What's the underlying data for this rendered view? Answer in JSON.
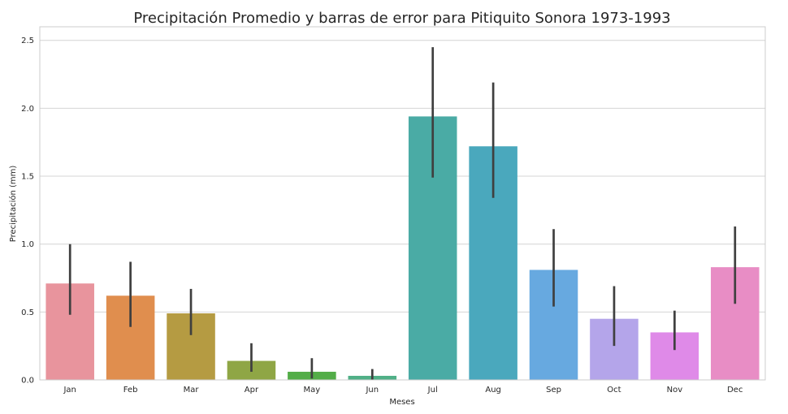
{
  "chart_data": {
    "type": "bar",
    "title": "Precipitación Promedio y barras de error para Pitiquito Sonora 1973-1993",
    "xlabel": "Meses",
    "ylabel": "Precipitación (mm)",
    "ylim": [
      0,
      2.6
    ],
    "yticks": [
      0.0,
      0.5,
      1.0,
      1.5,
      2.0,
      2.5
    ],
    "ytick_labels": [
      "0.0",
      "0.5",
      "1.0",
      "1.5",
      "2.0",
      "2.5"
    ],
    "grid": true,
    "categories": [
      "Jan",
      "Feb",
      "Mar",
      "Apr",
      "May",
      "Jun",
      "Jul",
      "Aug",
      "Sep",
      "Oct",
      "Nov",
      "Dec"
    ],
    "values": [
      0.71,
      0.62,
      0.49,
      0.14,
      0.06,
      0.03,
      1.94,
      1.72,
      0.81,
      0.45,
      0.35,
      0.83
    ],
    "error_low": [
      0.48,
      0.39,
      0.33,
      0.06,
      0.01,
      0.0,
      1.49,
      1.34,
      0.54,
      0.25,
      0.22,
      0.56
    ],
    "error_high": [
      1.0,
      0.87,
      0.67,
      0.27,
      0.16,
      0.08,
      2.45,
      2.19,
      1.11,
      0.69,
      0.51,
      1.13
    ],
    "colors": [
      "#e8949d",
      "#e08e4e",
      "#b59b42",
      "#8fa645",
      "#53ad48",
      "#50b087",
      "#4aaba5",
      "#4aa8bd",
      "#67a9e0",
      "#b4a5ea",
      "#df8ae8",
      "#e88dc5"
    ]
  }
}
